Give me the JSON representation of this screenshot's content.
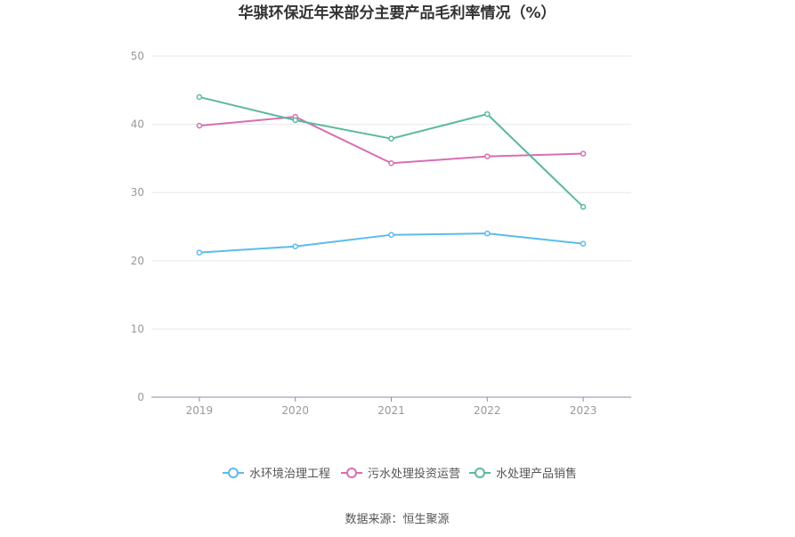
{
  "chart_data": {
    "type": "line",
    "title": "华骐环保近年来部分主要产品毛利率情况（%）",
    "categories": [
      "2019",
      "2020",
      "2021",
      "2022",
      "2023"
    ],
    "ylim": [
      0,
      50
    ],
    "yticks": [
      0,
      10,
      20,
      30,
      40,
      50
    ],
    "grid": true,
    "legend_position": "bottom",
    "series": [
      {
        "name": "水环境治理工程",
        "color": "#5bbcec",
        "values": [
          21.2,
          22.1,
          23.8,
          24.0,
          22.5
        ]
      },
      {
        "name": "污水处理投资运营",
        "color": "#d66fb4",
        "values": [
          39.8,
          41.1,
          34.3,
          35.3,
          35.7
        ]
      },
      {
        "name": "水处理产品销售",
        "color": "#5cb89f",
        "values": [
          44.0,
          40.6,
          37.9,
          41.5,
          27.9
        ]
      }
    ],
    "source": "数据来源：恒生聚源"
  }
}
